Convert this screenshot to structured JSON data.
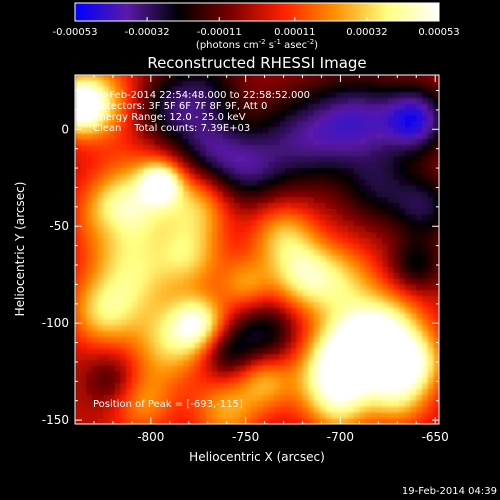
{
  "colorbar": {
    "tick_labels": [
      "-0.00053",
      "-0.00032",
      "-0.00011",
      "0.00011",
      "0.00032",
      "0.00053"
    ],
    "tick_values": [
      -0.00053,
      -0.00032,
      -0.00011,
      0.00011,
      0.00032,
      0.00053
    ],
    "range": [
      -0.00053,
      0.00053
    ],
    "units_text_parts": [
      "(photons cm",
      "-2",
      " s",
      "-1",
      " asec",
      "-2",
      ")"
    ],
    "stops": [
      "#0000ff",
      "#5a1aa8",
      "#000000",
      "#7a0000",
      "#ff2000",
      "#ff9000",
      "#ffff80",
      "#ffffff"
    ]
  },
  "title": "Reconstructed RHESSI Image",
  "annotations": {
    "time": "18-Feb-2014 22:54:48.000 to 22:58:52.000",
    "detectors": "Detectors: 3F 5F 6F 7F 8F 9F, Att 0",
    "energy": "Energy Range: 12.0 - 25.0 keV",
    "clean": "Clean    Total counts: 7.39E+03",
    "peak": "Position of Peak = [-693,-115]"
  },
  "footer": {
    "timestamp": "19-Feb-2014 04:39"
  },
  "chart_data": {
    "type": "heatmap",
    "title": "Reconstructed RHESSI Image",
    "xlabel": "Heliocentric X (arcsec)",
    "ylabel": "Heliocentric Y (arcsec)",
    "xlim": [
      -840,
      -648
    ],
    "ylim": [
      -152,
      28
    ],
    "x_ticks": [
      -800,
      -750,
      -700,
      -650
    ],
    "x_tick_labels": [
      "-800",
      "-750",
      "-700",
      "-650"
    ],
    "y_ticks": [
      0,
      -50,
      -100,
      -150
    ],
    "y_tick_labels": [
      "0",
      "-50",
      "-100",
      "-150"
    ],
    "peak_position": [
      -693,
      -115
    ],
    "features": [
      {
        "x": -838,
        "y": 12,
        "level": 0.95,
        "r": 9
      },
      {
        "x": -828,
        "y": 15,
        "level": 0.6,
        "r": 14
      },
      {
        "x": -795,
        "y": -28,
        "level": 0.9,
        "r": 7
      },
      {
        "x": -805,
        "y": -35,
        "level": 0.6,
        "r": 16
      },
      {
        "x": -820,
        "y": -45,
        "level": 0.55,
        "r": 12
      },
      {
        "x": -775,
        "y": -40,
        "level": 0.5,
        "r": 12
      },
      {
        "x": -810,
        "y": -75,
        "level": 0.65,
        "r": 16
      },
      {
        "x": -780,
        "y": -65,
        "level": 0.55,
        "r": 12
      },
      {
        "x": -825,
        "y": -95,
        "level": 0.55,
        "r": 12
      },
      {
        "x": -775,
        "y": -100,
        "level": 0.8,
        "r": 10
      },
      {
        "x": -790,
        "y": -110,
        "level": 0.6,
        "r": 14
      },
      {
        "x": -750,
        "y": -80,
        "level": 0.45,
        "r": 10
      },
      {
        "x": -730,
        "y": -55,
        "level": 0.55,
        "r": 12
      },
      {
        "x": -720,
        "y": -75,
        "level": 0.65,
        "r": 12
      },
      {
        "x": -700,
        "y": -80,
        "level": 0.55,
        "r": 14
      },
      {
        "x": -693,
        "y": -115,
        "level": 1.0,
        "r": 14
      },
      {
        "x": -675,
        "y": -105,
        "level": 0.85,
        "r": 14
      },
      {
        "x": -705,
        "y": -130,
        "level": 0.75,
        "r": 14
      },
      {
        "x": -670,
        "y": -135,
        "level": 0.7,
        "r": 12
      },
      {
        "x": -660,
        "y": -120,
        "level": 0.6,
        "r": 10
      },
      {
        "x": -740,
        "y": -130,
        "level": 0.5,
        "r": 10
      },
      {
        "x": -805,
        "y": -140,
        "level": 0.45,
        "r": 12
      },
      {
        "x": -760,
        "y": -145,
        "level": 0.5,
        "r": 12
      },
      {
        "x": -750,
        "y": -20,
        "level": -0.55,
        "r": 14
      },
      {
        "x": -720,
        "y": -5,
        "level": -0.6,
        "r": 18
      },
      {
        "x": -690,
        "y": 5,
        "level": -0.65,
        "r": 16
      },
      {
        "x": -660,
        "y": 5,
        "level": -0.85,
        "r": 12
      },
      {
        "x": -770,
        "y": -10,
        "level": -0.45,
        "r": 12
      },
      {
        "x": -790,
        "y": 10,
        "level": -0.5,
        "r": 14
      },
      {
        "x": -770,
        "y": 20,
        "level": -0.4,
        "r": 14
      },
      {
        "x": -680,
        "y": -30,
        "level": -0.45,
        "r": 14
      },
      {
        "x": -655,
        "y": -40,
        "level": -0.5,
        "r": 12
      },
      {
        "x": -660,
        "y": -70,
        "level": -0.45,
        "r": 10
      },
      {
        "x": -740,
        "y": -105,
        "level": -0.5,
        "r": 12
      },
      {
        "x": -760,
        "y": -115,
        "level": -0.45,
        "r": 10
      },
      {
        "x": -820,
        "y": -130,
        "level": -0.35,
        "r": 10
      },
      {
        "x": -820,
        "y": -50,
        "level": -0.2,
        "r": 8
      },
      {
        "x": -700,
        "y": -145,
        "level": 0.3,
        "r": 10
      }
    ]
  }
}
